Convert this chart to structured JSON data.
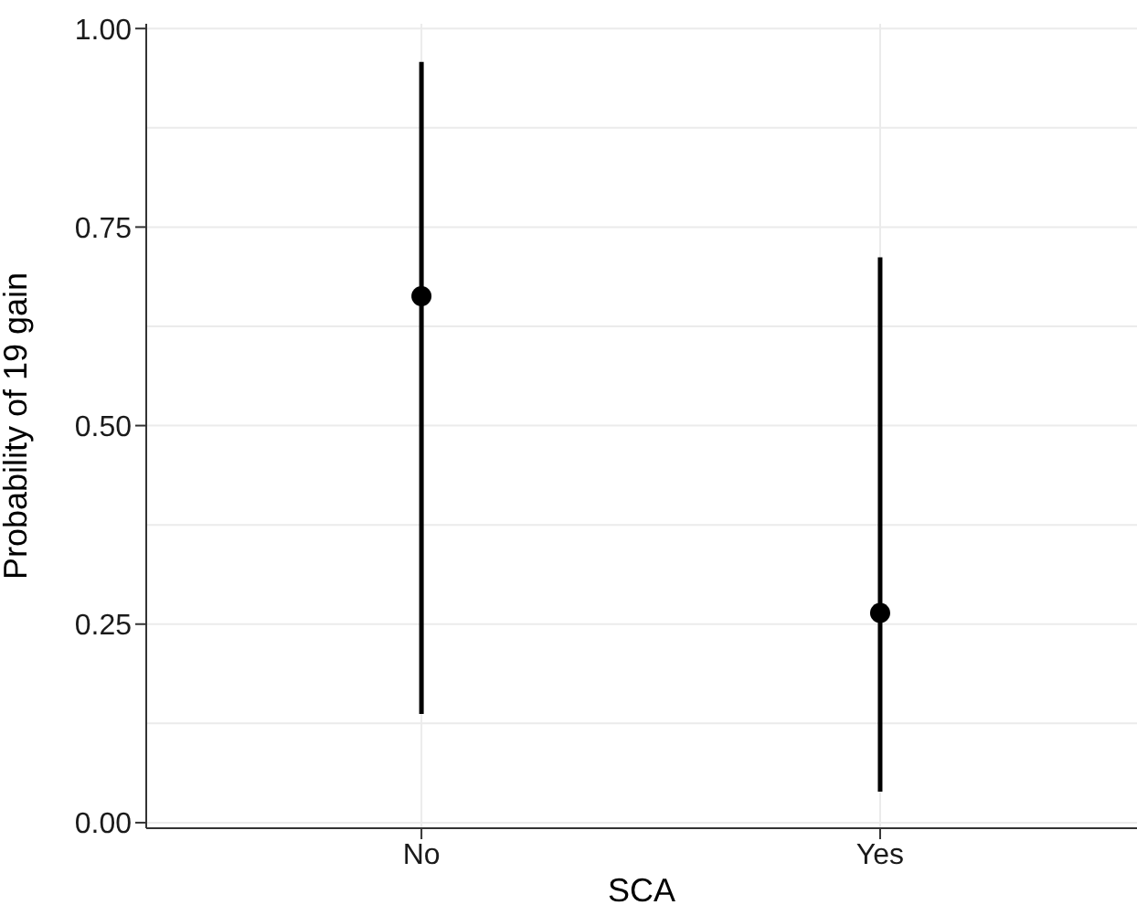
{
  "chart_data": {
    "type": "scatter",
    "xlabel": "SCA",
    "ylabel": "Probability of 19 gain",
    "categories": [
      "No",
      "Yes"
    ],
    "series": [
      {
        "color": "#000000",
        "values": [
          0.663,
          0.264
        ],
        "errors": [
          [
            0.137,
            0.958
          ],
          [
            0.039,
            0.712
          ]
        ]
      }
    ],
    "ylim": [
      -0.007,
      1.006
    ],
    "yticks": [
      {
        "value": 0,
        "label": "0.00"
      },
      {
        "value": 0.25,
        "label": "0.25"
      },
      {
        "value": 0.5,
        "label": "0.50"
      },
      {
        "value": 0.75,
        "label": "0.75"
      },
      {
        "value": 1,
        "label": "1.00"
      }
    ],
    "grid": true,
    "marker": "circle"
  }
}
